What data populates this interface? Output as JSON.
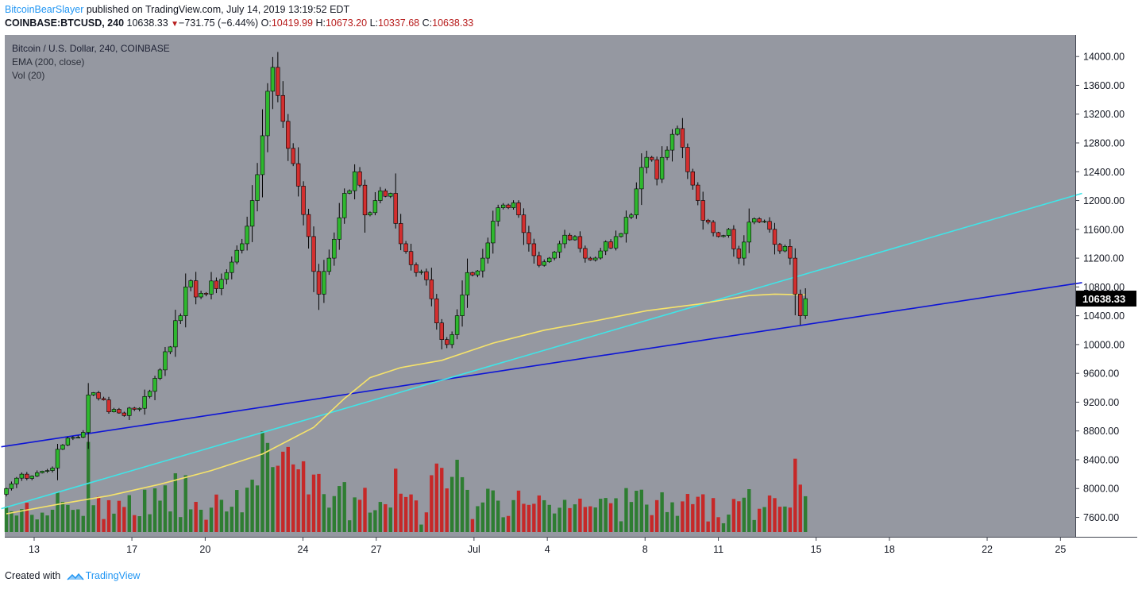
{
  "header": {
    "author": "BitcoinBearSlayer",
    "published_text": "published on TradingView.com, July 14, 2019 13:19:52 EDT",
    "symbol": "COINBASE:BTCUSD, 240",
    "last": "10638.33",
    "change": "−731.75 (−6.44%)",
    "o_label": "O:",
    "o_value": "10419.99",
    "h_label": "H:",
    "h_value": "10673.20",
    "l_label": "L:",
    "l_value": "10337.68",
    "c_label": "C:",
    "c_value": "10638.33"
  },
  "legend": {
    "line1": "Bitcoin / U.S. Dollar, 240, COINBASE",
    "line2": "EMA (200, close)",
    "line3": "Vol (20)"
  },
  "footer": {
    "created_with": "Created with",
    "brand": "TradingView"
  },
  "colors": {
    "plot_bg": "#9598a1",
    "up": "#2eb82e",
    "down": "#d32f2f",
    "vol_up": "#2e7d32",
    "vol_down": "#c62828",
    "ema": "#f6e36a",
    "trend_support": "#0d14d6",
    "trend_cyan": "#3fe5e8",
    "price_tag_bg": "#000000"
  },
  "chart_data": {
    "type": "candlestick",
    "title": "Bitcoin / U.S. Dollar, 240, COINBASE",
    "ylim": [
      7330,
      14300
    ],
    "y_ticks": [
      7600,
      8000,
      8400,
      8800,
      9200,
      9600,
      10000,
      10400,
      10800,
      11200,
      11600,
      12000,
      12400,
      12800,
      13200,
      13600,
      14000
    ],
    "y_tick_labels": [
      "7600.00",
      "8000.00",
      "8400.00",
      "8800.00",
      "9200.00",
      "9600.00",
      "10000.00",
      "10400.00",
      "10800.00",
      "11200.00",
      "11600.00",
      "12000.00",
      "12400.00",
      "12800.00",
      "13200.00",
      "13600.00",
      "14000.00"
    ],
    "x_ticks": [
      {
        "label": "13",
        "day": 0
      },
      {
        "label": "17",
        "day": 4
      },
      {
        "label": "20",
        "day": 7
      },
      {
        "label": "24",
        "day": 11
      },
      {
        "label": "27",
        "day": 14
      },
      {
        "label": "Jul",
        "day": 18
      },
      {
        "label": "4",
        "day": 21
      },
      {
        "label": "8",
        "day": 25
      },
      {
        "label": "11",
        "day": 28
      },
      {
        "label": "15",
        "day": 32
      },
      {
        "label": "18",
        "day": 35
      },
      {
        "label": "22",
        "day": 39
      },
      {
        "label": "25",
        "day": 42
      }
    ],
    "last_price": "10638.33",
    "anchors": [
      [
        0,
        8000
      ],
      [
        3,
        8200
      ],
      [
        8,
        8250
      ],
      [
        12,
        8700
      ],
      [
        15,
        8780
      ],
      [
        16,
        9300
      ],
      [
        18,
        9250
      ],
      [
        22,
        9050
      ],
      [
        25,
        9100
      ],
      [
        28,
        9350
      ],
      [
        31,
        9900
      ],
      [
        34,
        10400
      ],
      [
        35,
        10800
      ],
      [
        39,
        10700
      ],
      [
        43,
        11000
      ],
      [
        46,
        11400
      ],
      [
        48,
        12000
      ],
      [
        50,
        12900
      ],
      [
        52,
        13850
      ],
      [
        54,
        13100
      ],
      [
        57,
        12200
      ],
      [
        59,
        11500
      ],
      [
        61,
        10700
      ],
      [
        63,
        11200
      ],
      [
        66,
        12100
      ],
      [
        68,
        12400
      ],
      [
        70,
        11800
      ],
      [
        72,
        12000
      ],
      [
        75,
        12100
      ],
      [
        77,
        11400
      ],
      [
        80,
        11000
      ],
      [
        82,
        10900
      ],
      [
        84,
        10300
      ],
      [
        86,
        10000
      ],
      [
        88,
        10400
      ],
      [
        90,
        11000
      ],
      [
        93,
        11200
      ],
      [
        96,
        11900
      ],
      [
        98,
        11900
      ],
      [
        100,
        11800
      ],
      [
        102,
        11400
      ],
      [
        104,
        11100
      ],
      [
        106,
        11200
      ],
      [
        108,
        11400
      ],
      [
        111,
        11500
      ],
      [
        113,
        11200
      ],
      [
        116,
        11300
      ],
      [
        119,
        11500
      ],
      [
        122,
        11800
      ],
      [
        125,
        12600
      ],
      [
        127,
        12300
      ],
      [
        129,
        12700
      ],
      [
        131,
        13000
      ],
      [
        133,
        12400
      ],
      [
        135,
        12000
      ],
      [
        137,
        11700
      ],
      [
        139,
        11500
      ],
      [
        141,
        11600
      ],
      [
        143,
        11200
      ],
      [
        145,
        11700
      ],
      [
        147,
        11700
      ],
      [
        149,
        11600
      ],
      [
        151,
        11300
      ],
      [
        153,
        11200
      ],
      [
        154,
        10700
      ],
      [
        155,
        10400
      ],
      [
        156,
        10638
      ]
    ],
    "ema_points": [
      [
        0,
        7650
      ],
      [
        10,
        7780
      ],
      [
        20,
        7900
      ],
      [
        30,
        8060
      ],
      [
        40,
        8250
      ],
      [
        50,
        8480
      ],
      [
        60,
        8850
      ],
      [
        66,
        9250
      ],
      [
        71,
        9540
      ],
      [
        77,
        9680
      ],
      [
        85,
        9780
      ],
      [
        95,
        10020
      ],
      [
        105,
        10200
      ],
      [
        115,
        10330
      ],
      [
        125,
        10470
      ],
      [
        135,
        10560
      ],
      [
        145,
        10680
      ],
      [
        150,
        10700
      ],
      [
        156,
        10690
      ]
    ],
    "trendlines": [
      {
        "name": "support",
        "from": [
          -1,
          8580
        ],
        "to": [
          210,
          10860
        ]
      },
      {
        "name": "cyan",
        "from": [
          -1,
          7720
        ],
        "to": [
          210,
          12100
        ]
      }
    ],
    "volume_ylim": [
      0,
      1
    ]
  }
}
